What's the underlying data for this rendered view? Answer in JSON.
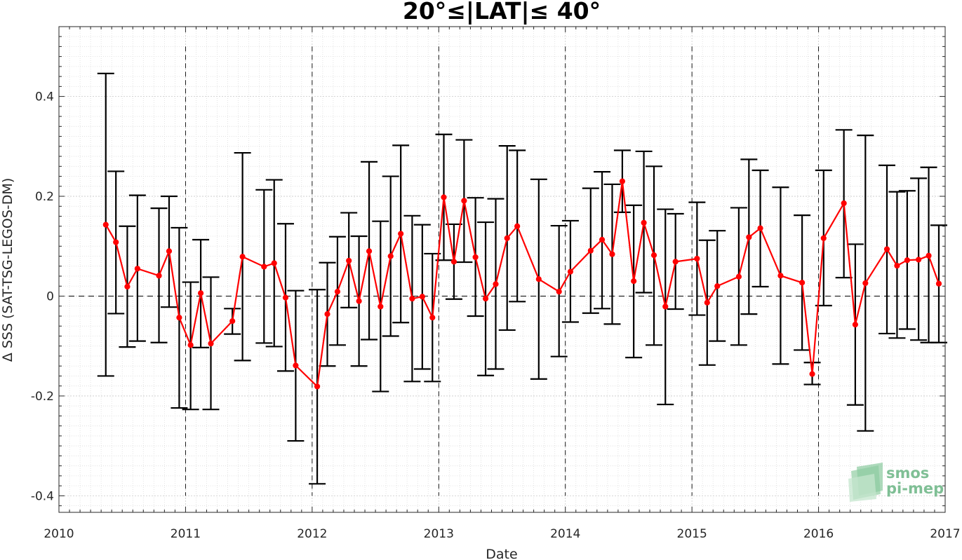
{
  "chart_data": {
    "type": "line",
    "title": "20°≤|LAT|≤ 40°",
    "xlabel": "Date",
    "ylabel": "Δ SSS (SAT-TSG-LEGOS-DM)",
    "xlim": [
      2010,
      2017
    ],
    "ylim": [
      -0.44,
      0.54
    ],
    "x_ticks": [
      2010,
      2011,
      2012,
      2013,
      2014,
      2015,
      2016,
      2017
    ],
    "x_tick_labels": [
      "2010",
      "2011",
      "2012",
      "2013",
      "2014",
      "2015",
      "2016",
      "2017"
    ],
    "y_ticks": [
      -0.4,
      -0.2,
      0,
      0.2,
      0.4
    ],
    "y_tick_labels": [
      "-0.4",
      "-0.2",
      "0",
      "0.2",
      "0.4"
    ],
    "grid": true,
    "year_dividers": [
      2011,
      2012,
      2013,
      2014,
      2015,
      2016
    ],
    "zero_line": 0,
    "series_color": "#ff0000",
    "errorbar_color": "#000000",
    "series": [
      {
        "x": [
          2010.37,
          2010.45,
          2010.54,
          2010.62,
          2010.79,
          2010.87,
          2010.95,
          2011.04,
          2011.12,
          2011.2,
          2011.37,
          2011.45,
          2011.62,
          2011.7,
          2011.79,
          2011.87,
          2012.04,
          2012.12,
          2012.2,
          2012.29,
          2012.37,
          2012.45,
          2012.54,
          2012.62,
          2012.7,
          2012.79,
          2012.87,
          2012.95,
          2013.04,
          2013.12,
          2013.2,
          2013.29,
          2013.37,
          2013.45,
          2013.54,
          2013.62,
          2013.79,
          2013.95,
          2014.04,
          2014.2,
          2014.29,
          2014.37,
          2014.45,
          2014.54,
          2014.62,
          2014.7,
          2014.79,
          2014.87,
          2015.04,
          2015.12,
          2015.2,
          2015.37,
          2015.45,
          2015.54,
          2015.7,
          2015.87,
          2015.95,
          2016.04,
          2016.2,
          2016.29,
          2016.37,
          2016.54,
          2016.62,
          2016.7,
          2016.79,
          2016.87,
          2016.95
        ],
        "y": [
          0.143,
          0.108,
          0.019,
          0.055,
          0.041,
          0.09,
          -0.043,
          -0.098,
          0.006,
          -0.095,
          -0.05,
          0.079,
          0.059,
          0.066,
          -0.003,
          -0.139,
          -0.181,
          -0.036,
          0.009,
          0.071,
          -0.01,
          0.09,
          -0.021,
          0.08,
          0.125,
          -0.005,
          -0.001,
          -0.043,
          0.198,
          0.069,
          0.191,
          0.078,
          -0.005,
          0.024,
          0.116,
          0.14,
          0.034,
          0.009,
          0.049,
          0.091,
          0.113,
          0.084,
          0.23,
          0.03,
          0.147,
          0.082,
          -0.021,
          0.069,
          0.075,
          -0.013,
          0.02,
          0.039,
          0.118,
          0.136,
          0.041,
          0.027,
          -0.156,
          0.116,
          0.186,
          -0.057,
          0.026,
          0.094,
          0.061,
          0.072,
          0.073,
          0.081,
          0.025
        ],
        "err_low": [
          -0.16,
          -0.035,
          -0.102,
          -0.09,
          -0.093,
          -0.022,
          -0.224,
          -0.227,
          -0.103,
          -0.227,
          -0.076,
          -0.129,
          -0.094,
          -0.101,
          -0.15,
          -0.29,
          -0.376,
          -0.14,
          -0.098,
          -0.023,
          -0.14,
          -0.087,
          -0.191,
          -0.08,
          -0.053,
          -0.171,
          -0.146,
          -0.171,
          0.072,
          -0.006,
          0.068,
          -0.04,
          -0.159,
          -0.146,
          -0.068,
          -0.011,
          -0.166,
          -0.121,
          -0.052,
          -0.034,
          -0.025,
          -0.056,
          0.168,
          -0.123,
          0.007,
          -0.098,
          -0.217,
          -0.026,
          -0.038,
          -0.138,
          -0.09,
          -0.098,
          -0.036,
          0.019,
          -0.136,
          -0.108,
          -0.177,
          -0.019,
          0.037,
          -0.218,
          -0.27,
          -0.075,
          -0.084,
          -0.066,
          -0.088,
          -0.093,
          -0.093
        ],
        "err_high": [
          0.446,
          0.25,
          0.14,
          0.202,
          0.176,
          0.2,
          0.137,
          0.028,
          0.113,
          0.038,
          -0.025,
          0.287,
          0.213,
          0.233,
          0.145,
          0.011,
          0.013,
          0.067,
          0.119,
          0.167,
          0.12,
          0.269,
          0.15,
          0.24,
          0.302,
          0.161,
          0.143,
          0.085,
          0.324,
          0.144,
          0.313,
          0.197,
          0.148,
          0.195,
          0.301,
          0.292,
          0.234,
          0.141,
          0.151,
          0.216,
          0.249,
          0.224,
          0.292,
          0.182,
          0.29,
          0.26,
          0.174,
          0.165,
          0.188,
          0.112,
          0.131,
          0.177,
          0.274,
          0.252,
          0.218,
          0.162,
          -0.133,
          0.252,
          0.333,
          0.104,
          0.322,
          0.262,
          0.209,
          0.211,
          0.236,
          0.258,
          0.142
        ]
      }
    ]
  },
  "logo": {
    "line1": "smos",
    "line2": "pi-mep",
    "color": "#7fbf95"
  }
}
